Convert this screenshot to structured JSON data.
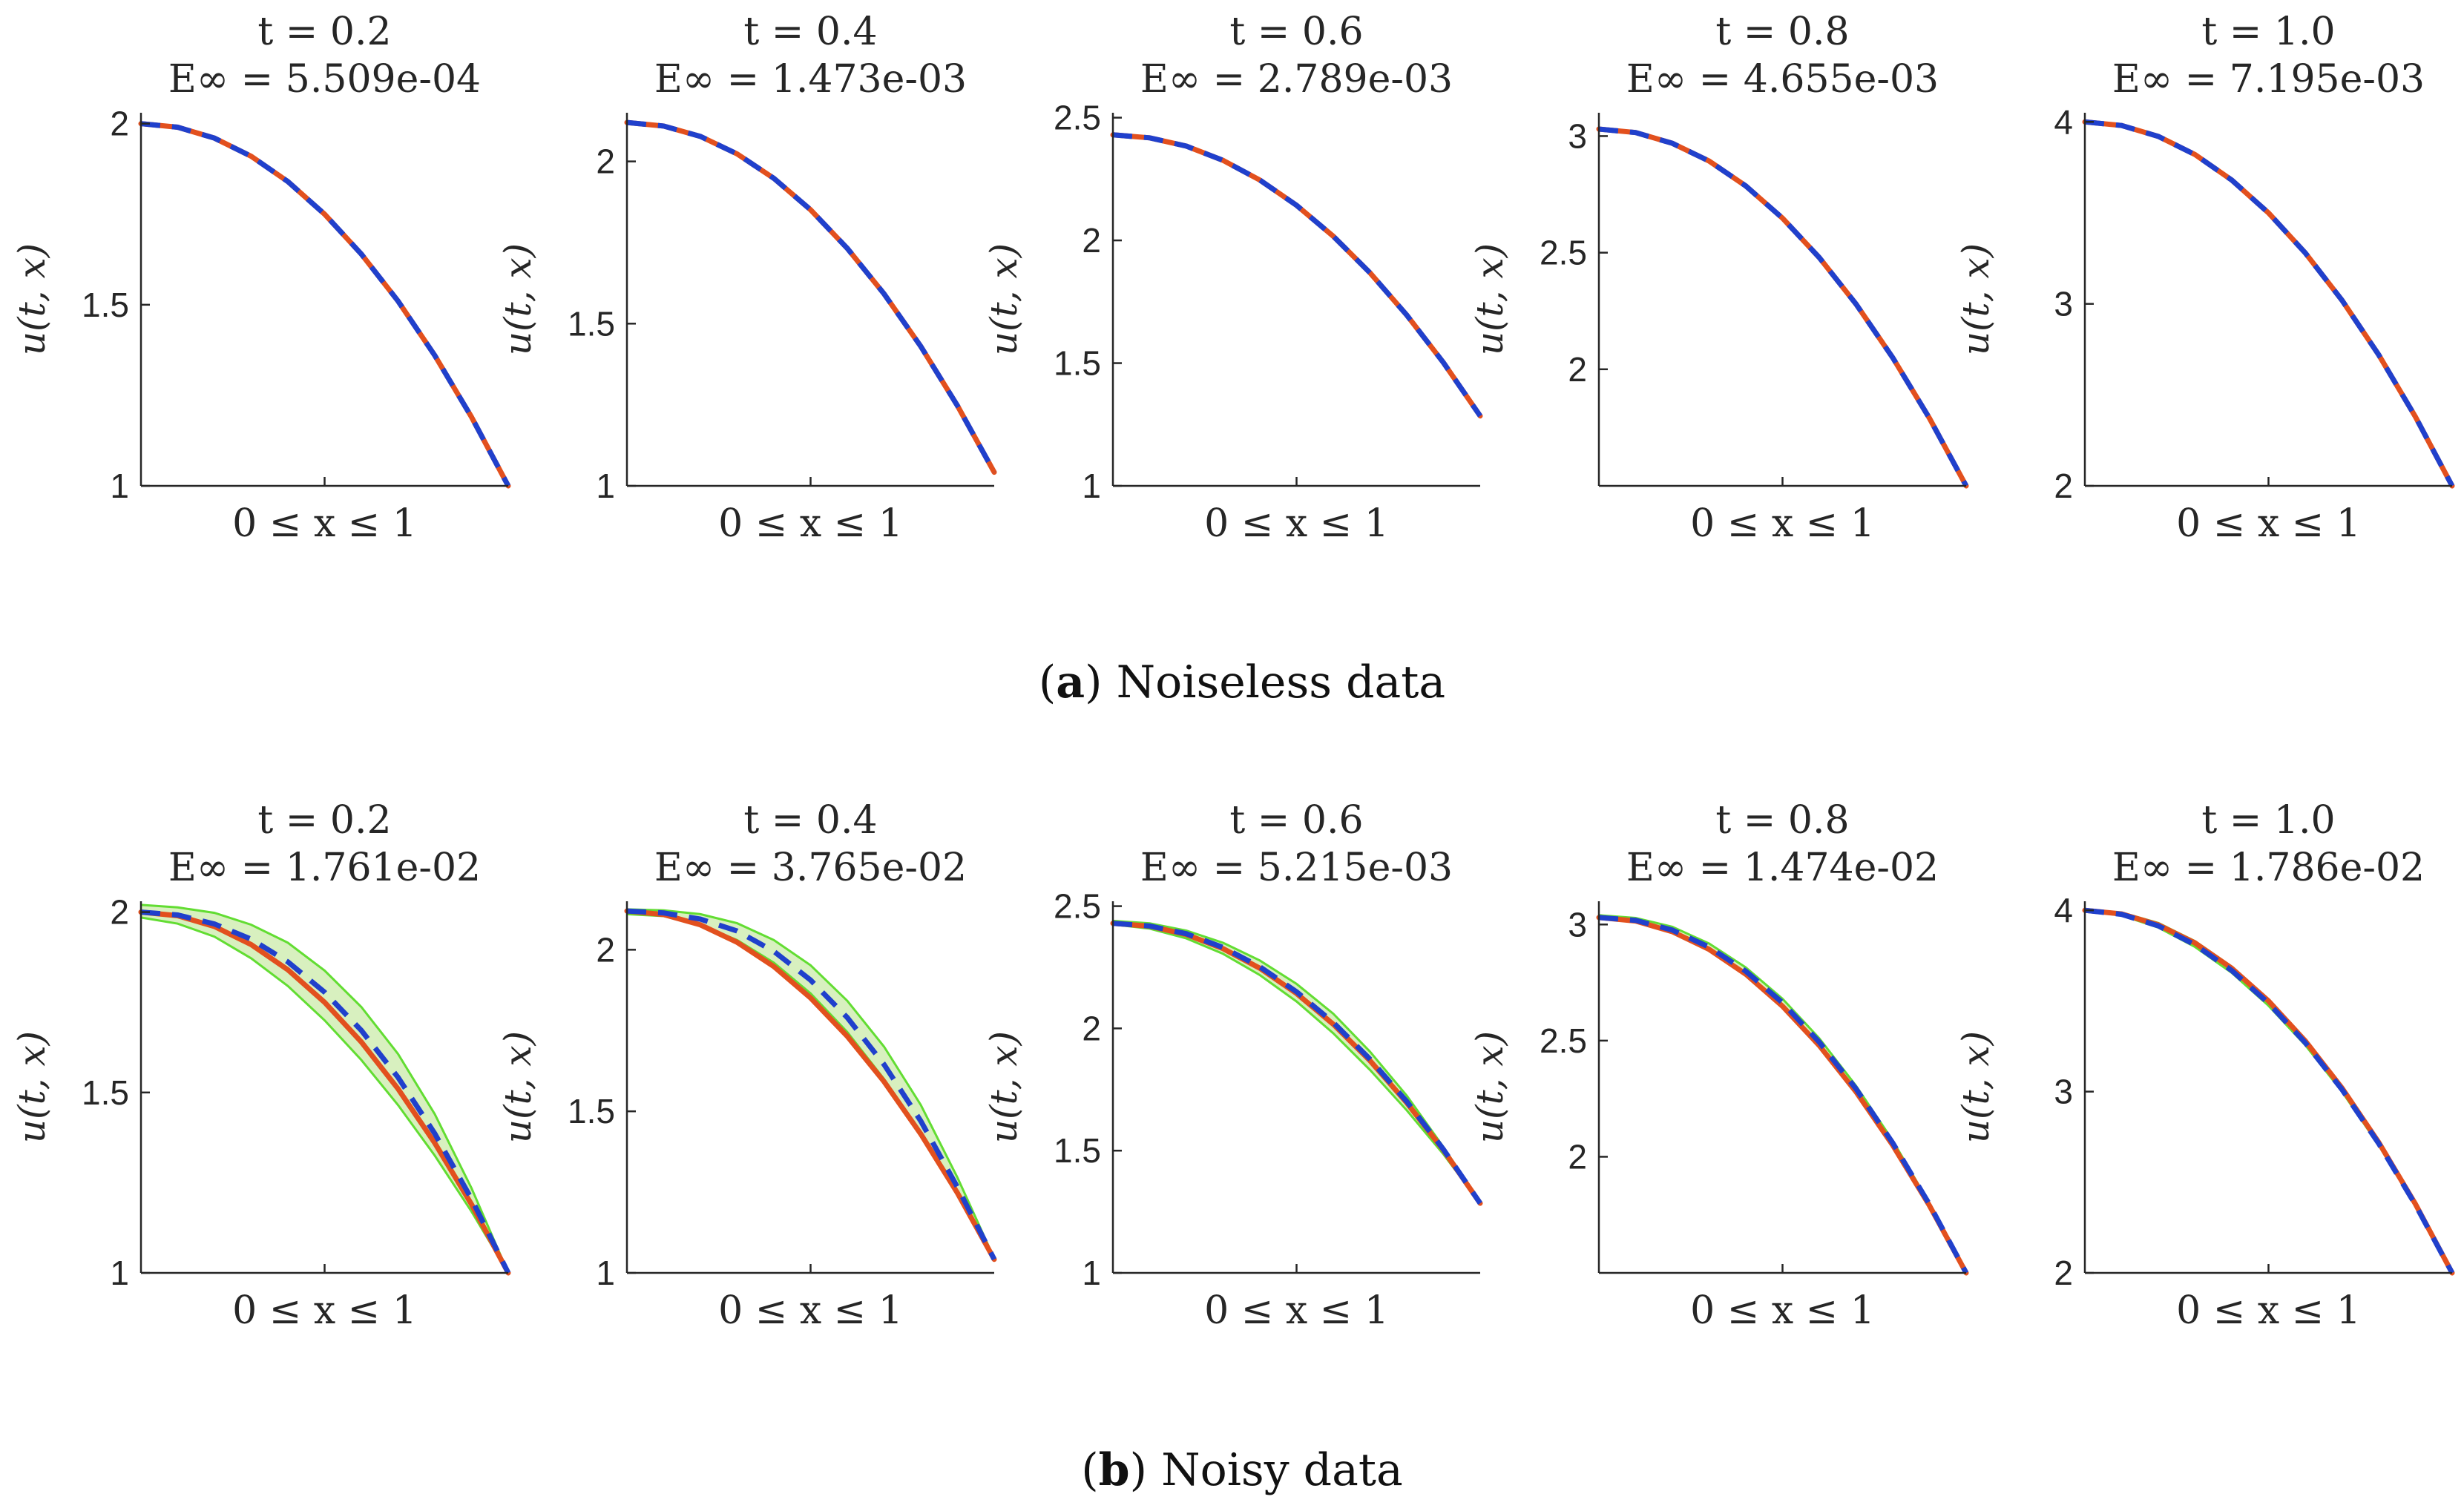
{
  "colors": {
    "exact_line": "#e2501e",
    "prediction_line": "#2040cc",
    "uncertainty_band_fill": "#d8f0bf",
    "uncertainty_band_edge": "#62dd32",
    "axis": "#262626"
  },
  "panels": [
    {
      "name": "a",
      "caption_letter": "a",
      "caption_text": " Noiseless data",
      "caption_open": "(",
      "caption_close": ")"
    },
    {
      "name": "b",
      "caption_letter": "b",
      "caption_text": " Noisy data",
      "caption_open": "(",
      "caption_close": ")"
    }
  ],
  "chart_data": [
    {
      "type": "line",
      "panel": "a",
      "title": "t = 0.2",
      "error_label": "E∞ = 5.509e-04",
      "xlabel": "0 ≤ x ≤ 1",
      "ylabel": "u(t, x)",
      "xlim": [
        0,
        1
      ],
      "ylim": [
        1,
        2.03
      ],
      "yticks": [
        1,
        1.5,
        2
      ],
      "ytick_labels": [
        "1",
        "1.5",
        "2"
      ],
      "xticks": [
        0.5
      ],
      "series": [
        {
          "name": "exact",
          "x": [
            0,
            0.1,
            0.2,
            0.3,
            0.4,
            0.5,
            0.6,
            0.7,
            0.8,
            0.9,
            1.0
          ],
          "values": [
            2.0,
            1.99,
            1.96,
            1.91,
            1.84,
            1.75,
            1.64,
            1.51,
            1.36,
            1.19,
            1.0
          ]
        },
        {
          "name": "prediction",
          "x": [
            0,
            0.1,
            0.2,
            0.3,
            0.4,
            0.5,
            0.6,
            0.7,
            0.8,
            0.9,
            1.0
          ],
          "values": [
            2.0,
            1.99,
            1.96,
            1.91,
            1.84,
            1.75,
            1.64,
            1.51,
            1.36,
            1.19,
            1.0
          ]
        }
      ],
      "band": null
    },
    {
      "type": "line",
      "panel": "a",
      "title": "t = 0.4",
      "error_label": "E∞ = 1.473e-03",
      "xlabel": "0 ≤ x ≤ 1",
      "ylabel": "u(t, x)",
      "xlim": [
        0,
        1
      ],
      "ylim": [
        1,
        2.15
      ],
      "yticks": [
        1,
        1.5,
        2
      ],
      "ytick_labels": [
        "1",
        "1.5",
        "2"
      ],
      "xticks": [
        0.5
      ],
      "series": [
        {
          "name": "exact",
          "x": [
            0,
            0.1,
            0.2,
            0.3,
            0.4,
            0.5,
            0.6,
            0.7,
            0.8,
            0.9,
            1.0
          ],
          "values": [
            2.12,
            2.109,
            2.077,
            2.023,
            1.948,
            1.851,
            1.732,
            1.592,
            1.43,
            1.247,
            1.042
          ]
        },
        {
          "name": "prediction",
          "x": [
            0,
            0.1,
            0.2,
            0.3,
            0.4,
            0.5,
            0.6,
            0.7,
            0.8,
            0.9,
            1.0
          ],
          "values": [
            2.12,
            2.109,
            2.077,
            2.023,
            1.948,
            1.851,
            1.732,
            1.592,
            1.43,
            1.247,
            1.042
          ]
        }
      ],
      "band": null
    },
    {
      "type": "line",
      "panel": "a",
      "title": "t = 0.6",
      "error_label": "E∞ = 2.789e-03",
      "xlabel": "0 ≤ x ≤ 1",
      "ylabel": "u(t, x)",
      "xlim": [
        0,
        1
      ],
      "ylim": [
        1,
        2.52
      ],
      "yticks": [
        1,
        1.5,
        2,
        2.5
      ],
      "ytick_labels": [
        "1",
        "1.5",
        "2",
        "2.5"
      ],
      "xticks": [
        0.5
      ],
      "series": [
        {
          "name": "exact",
          "x": [
            0,
            0.1,
            0.2,
            0.3,
            0.4,
            0.5,
            0.6,
            0.7,
            0.8,
            0.9,
            1.0
          ],
          "values": [
            2.43,
            2.418,
            2.384,
            2.326,
            2.246,
            2.143,
            2.017,
            1.868,
            1.696,
            1.502,
            1.285
          ]
        },
        {
          "name": "prediction",
          "x": [
            0,
            0.1,
            0.2,
            0.3,
            0.4,
            0.5,
            0.6,
            0.7,
            0.8,
            0.9,
            1.0
          ],
          "values": [
            2.43,
            2.418,
            2.384,
            2.326,
            2.246,
            2.143,
            2.017,
            1.868,
            1.696,
            1.502,
            1.285
          ]
        }
      ],
      "band": null
    },
    {
      "type": "line",
      "panel": "a",
      "title": "t = 0.8",
      "error_label": "E∞ = 4.655e-03",
      "xlabel": "0 ≤ x ≤ 1",
      "ylabel": "u(t, x)",
      "xlim": [
        0,
        1
      ],
      "ylim": [
        1.5,
        3.1
      ],
      "yticks": [
        2,
        2.5,
        3
      ],
      "ytick_labels": [
        "2",
        "2.5",
        "3"
      ],
      "xticks": [
        0.5
      ],
      "series": [
        {
          "name": "exact",
          "x": [
            0,
            0.1,
            0.2,
            0.3,
            0.4,
            0.5,
            0.6,
            0.7,
            0.8,
            0.9,
            1.0
          ],
          "values": [
            3.03,
            3.015,
            2.969,
            2.893,
            2.786,
            2.648,
            2.479,
            2.28,
            2.05,
            1.79,
            1.5
          ]
        },
        {
          "name": "prediction",
          "x": [
            0,
            0.1,
            0.2,
            0.3,
            0.4,
            0.5,
            0.6,
            0.7,
            0.8,
            0.9,
            1.0
          ],
          "values": [
            3.03,
            3.015,
            2.969,
            2.893,
            2.786,
            2.648,
            2.479,
            2.28,
            2.05,
            1.79,
            1.5
          ]
        }
      ],
      "band": null
    },
    {
      "type": "line",
      "panel": "a",
      "title": "t = 1.0",
      "error_label": "E∞ = 7.195e-03",
      "xlabel": "0 ≤ x ≤ 1",
      "ylabel": "u(t, x)",
      "xlim": [
        0,
        1
      ],
      "ylim": [
        2,
        4.05
      ],
      "yticks": [
        2,
        3,
        4
      ],
      "ytick_labels": [
        "2",
        "3",
        "4"
      ],
      "xticks": [
        0.5
      ],
      "series": [
        {
          "name": "exact",
          "x": [
            0,
            0.1,
            0.2,
            0.3,
            0.4,
            0.5,
            0.6,
            0.7,
            0.8,
            0.9,
            1.0
          ],
          "values": [
            4.0,
            3.98,
            3.92,
            3.82,
            3.68,
            3.5,
            3.28,
            3.02,
            2.72,
            2.38,
            2.0
          ]
        },
        {
          "name": "prediction",
          "x": [
            0,
            0.1,
            0.2,
            0.3,
            0.4,
            0.5,
            0.6,
            0.7,
            0.8,
            0.9,
            1.0
          ],
          "values": [
            4.0,
            3.98,
            3.92,
            3.82,
            3.68,
            3.5,
            3.28,
            3.02,
            2.72,
            2.38,
            2.0
          ]
        }
      ],
      "band": null
    },
    {
      "type": "line",
      "panel": "b",
      "title": "t = 0.2",
      "error_label": "E∞ = 1.761e-02",
      "xlabel": "0 ≤ x ≤ 1",
      "ylabel": "u(t, x)",
      "xlim": [
        0,
        1
      ],
      "ylim": [
        1,
        2.03
      ],
      "yticks": [
        1,
        1.5,
        2
      ],
      "ytick_labels": [
        "1",
        "1.5",
        "2"
      ],
      "xticks": [
        0.5
      ],
      "series": [
        {
          "name": "exact",
          "x": [
            0,
            0.1,
            0.2,
            0.3,
            0.4,
            0.5,
            0.6,
            0.7,
            0.8,
            0.9,
            1.0
          ],
          "values": [
            2.0,
            1.99,
            1.96,
            1.91,
            1.84,
            1.75,
            1.64,
            1.51,
            1.36,
            1.19,
            1.0
          ]
        },
        {
          "name": "prediction",
          "x": [
            0,
            0.1,
            0.2,
            0.3,
            0.4,
            0.5,
            0.6,
            0.7,
            0.8,
            0.9,
            1.0
          ],
          "values": [
            2.0,
            1.992,
            1.967,
            1.925,
            1.862,
            1.778,
            1.672,
            1.542,
            1.386,
            1.205,
            1.0
          ]
        }
      ],
      "band": {
        "x": [
          0,
          0.1,
          0.2,
          0.3,
          0.4,
          0.5,
          0.6,
          0.7,
          0.8,
          0.9,
          1.0
        ],
        "lower": [
          1.985,
          1.968,
          1.932,
          1.872,
          1.795,
          1.7,
          1.59,
          1.465,
          1.325,
          1.17,
          1.0
        ],
        "upper": [
          2.02,
          2.013,
          1.998,
          1.965,
          1.915,
          1.838,
          1.737,
          1.607,
          1.44,
          1.235,
          1.0
        ]
      }
    },
    {
      "type": "line",
      "panel": "b",
      "title": "t = 0.4",
      "error_label": "E∞ = 3.765e-02",
      "xlabel": "0 ≤ x ≤ 1",
      "ylabel": "u(t, x)",
      "xlim": [
        0,
        1
      ],
      "ylim": [
        1,
        2.15
      ],
      "yticks": [
        1,
        1.5,
        2
      ],
      "ytick_labels": [
        "1",
        "1.5",
        "2"
      ],
      "xticks": [
        0.5
      ],
      "series": [
        {
          "name": "exact",
          "x": [
            0,
            0.1,
            0.2,
            0.3,
            0.4,
            0.5,
            0.6,
            0.7,
            0.8,
            0.9,
            1.0
          ],
          "values": [
            2.12,
            2.109,
            2.077,
            2.023,
            1.948,
            1.851,
            1.732,
            1.592,
            1.43,
            1.247,
            1.042
          ]
        },
        {
          "name": "prediction",
          "x": [
            0,
            0.1,
            0.2,
            0.3,
            0.4,
            0.5,
            0.6,
            0.7,
            0.8,
            0.9,
            1.0
          ],
          "values": [
            2.12,
            2.114,
            2.095,
            2.058,
            1.995,
            1.906,
            1.79,
            1.645,
            1.47,
            1.265,
            1.042
          ]
        }
      ],
      "band": {
        "x": [
          0,
          0.1,
          0.2,
          0.3,
          0.4,
          0.5,
          0.6,
          0.7,
          0.8,
          0.9,
          1.0
        ],
        "lower": [
          2.11,
          2.104,
          2.077,
          2.03,
          1.96,
          1.865,
          1.745,
          1.6,
          1.432,
          1.247,
          1.042
        ],
        "upper": [
          2.125,
          2.122,
          2.11,
          2.082,
          2.03,
          1.952,
          1.842,
          1.7,
          1.52,
          1.295,
          1.045
        ]
      }
    },
    {
      "type": "line",
      "panel": "b",
      "title": "t = 0.6",
      "error_label": "E∞ = 5.215e-03",
      "xlabel": "0 ≤ x ≤ 1",
      "ylabel": "u(t, x)",
      "xlim": [
        0,
        1
      ],
      "ylim": [
        1,
        2.52
      ],
      "yticks": [
        1,
        1.5,
        2,
        2.5
      ],
      "ytick_labels": [
        "1",
        "1.5",
        "2",
        "2.5"
      ],
      "xticks": [
        0.5
      ],
      "series": [
        {
          "name": "exact",
          "x": [
            0,
            0.1,
            0.2,
            0.3,
            0.4,
            0.5,
            0.6,
            0.7,
            0.8,
            0.9,
            1.0
          ],
          "values": [
            2.43,
            2.418,
            2.384,
            2.326,
            2.246,
            2.143,
            2.017,
            1.868,
            1.696,
            1.502,
            1.285
          ]
        },
        {
          "name": "prediction",
          "x": [
            0,
            0.1,
            0.2,
            0.3,
            0.4,
            0.5,
            0.6,
            0.7,
            0.8,
            0.9,
            1.0
          ],
          "values": [
            2.43,
            2.419,
            2.387,
            2.331,
            2.252,
            2.15,
            2.024,
            1.874,
            1.701,
            1.505,
            1.285
          ]
        }
      ],
      "band": {
        "x": [
          0,
          0.1,
          0.2,
          0.3,
          0.4,
          0.5,
          0.6,
          0.7,
          0.8,
          0.9,
          1.0
        ],
        "lower": [
          2.425,
          2.408,
          2.368,
          2.305,
          2.218,
          2.11,
          1.98,
          1.83,
          1.665,
          1.485,
          1.285
        ],
        "upper": [
          2.44,
          2.43,
          2.4,
          2.35,
          2.278,
          2.182,
          2.06,
          1.905,
          1.725,
          1.515,
          1.29
        ]
      }
    },
    {
      "type": "line",
      "panel": "b",
      "title": "t = 0.8",
      "error_label": "E∞ = 1.474e-02",
      "xlabel": "0 ≤ x ≤ 1",
      "ylabel": "u(t, x)",
      "xlim": [
        0,
        1
      ],
      "ylim": [
        1.5,
        3.1
      ],
      "yticks": [
        2,
        2.5,
        3
      ],
      "ytick_labels": [
        "2",
        "2.5",
        "3"
      ],
      "xticks": [
        0.5
      ],
      "series": [
        {
          "name": "exact",
          "x": [
            0,
            0.1,
            0.2,
            0.3,
            0.4,
            0.5,
            0.6,
            0.7,
            0.8,
            0.9,
            1.0
          ],
          "values": [
            3.03,
            3.015,
            2.969,
            2.893,
            2.786,
            2.648,
            2.479,
            2.28,
            2.05,
            1.79,
            1.5
          ]
        },
        {
          "name": "prediction",
          "x": [
            0,
            0.1,
            0.2,
            0.3,
            0.4,
            0.5,
            0.6,
            0.7,
            0.8,
            0.9,
            1.0
          ],
          "values": [
            3.03,
            3.018,
            2.976,
            2.903,
            2.799,
            2.663,
            2.494,
            2.293,
            2.06,
            1.795,
            1.5
          ]
        }
      ],
      "band": {
        "x": [
          0,
          0.1,
          0.2,
          0.3,
          0.4,
          0.5,
          0.6,
          0.7,
          0.8,
          0.9,
          1.0
        ],
        "lower": [
          3.025,
          3.01,
          2.965,
          2.888,
          2.78,
          2.642,
          2.473,
          2.274,
          2.045,
          1.786,
          1.5
        ],
        "upper": [
          3.04,
          3.028,
          2.99,
          2.918,
          2.815,
          2.68,
          2.51,
          2.306,
          2.07,
          1.8,
          1.5
        ]
      }
    },
    {
      "type": "line",
      "panel": "b",
      "title": "t = 1.0",
      "error_label": "E∞ = 1.786e-02",
      "xlabel": "0 ≤ x ≤ 1",
      "ylabel": "u(t, x)",
      "xlim": [
        0,
        1
      ],
      "ylim": [
        2,
        4.05
      ],
      "yticks": [
        2,
        3,
        4
      ],
      "ytick_labels": [
        "2",
        "3",
        "4"
      ],
      "xticks": [
        0.5
      ],
      "series": [
        {
          "name": "exact",
          "x": [
            0,
            0.1,
            0.2,
            0.3,
            0.4,
            0.5,
            0.6,
            0.7,
            0.8,
            0.9,
            1.0
          ],
          "values": [
            4.0,
            3.98,
            3.92,
            3.82,
            3.68,
            3.5,
            3.28,
            3.02,
            2.72,
            2.38,
            2.0
          ]
        },
        {
          "name": "prediction",
          "x": [
            0,
            0.1,
            0.2,
            0.3,
            0.4,
            0.5,
            0.6,
            0.7,
            0.8,
            0.9,
            1.0
          ],
          "values": [
            4.0,
            3.978,
            3.914,
            3.81,
            3.668,
            3.488,
            3.27,
            3.012,
            2.714,
            2.376,
            2.0
          ]
        }
      ],
      "band": {
        "x": [
          0,
          0.1,
          0.2,
          0.3,
          0.4,
          0.5,
          0.6,
          0.7,
          0.8,
          0.9,
          1.0
        ],
        "lower": [
          3.995,
          3.972,
          3.905,
          3.798,
          3.655,
          3.474,
          3.256,
          3.0,
          2.704,
          2.37,
          2.0
        ],
        "upper": [
          4.005,
          3.988,
          3.93,
          3.83,
          3.69,
          3.51,
          3.29,
          3.03,
          2.728,
          2.385,
          2.0
        ]
      }
    }
  ]
}
